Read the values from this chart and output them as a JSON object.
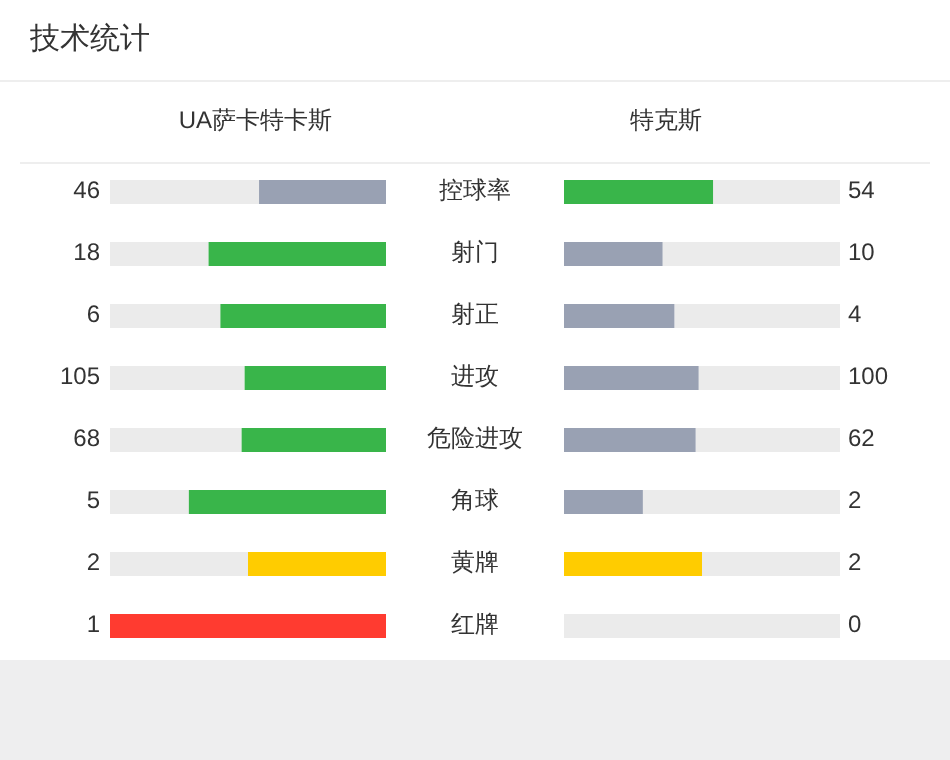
{
  "chart_data": {
    "type": "other",
    "title": "技术统计",
    "data_labels": true,
    "categories": [
      "控球率",
      "射门",
      "射正",
      "进攻",
      "危险进攻",
      "角球",
      "黄牌",
      "红牌"
    ],
    "series": [
      {
        "name": "UA萨卡特卡斯",
        "values": [
          46,
          18,
          6,
          105,
          68,
          5,
          2,
          1
        ],
        "colors": [
          "#99a1b3",
          "#39b54a",
          "#39b54a",
          "#39b54a",
          "#39b54a",
          "#39b54a",
          "#ffcc00",
          "#ff3b30"
        ]
      },
      {
        "name": "特克斯",
        "values": [
          54,
          10,
          4,
          100,
          62,
          2,
          2,
          0
        ],
        "colors": [
          "#39b54a",
          "#99a1b3",
          "#99a1b3",
          "#99a1b3",
          "#99a1b3",
          "#99a1b3",
          "#ffcc00",
          "#ff3b30"
        ]
      }
    ]
  }
}
